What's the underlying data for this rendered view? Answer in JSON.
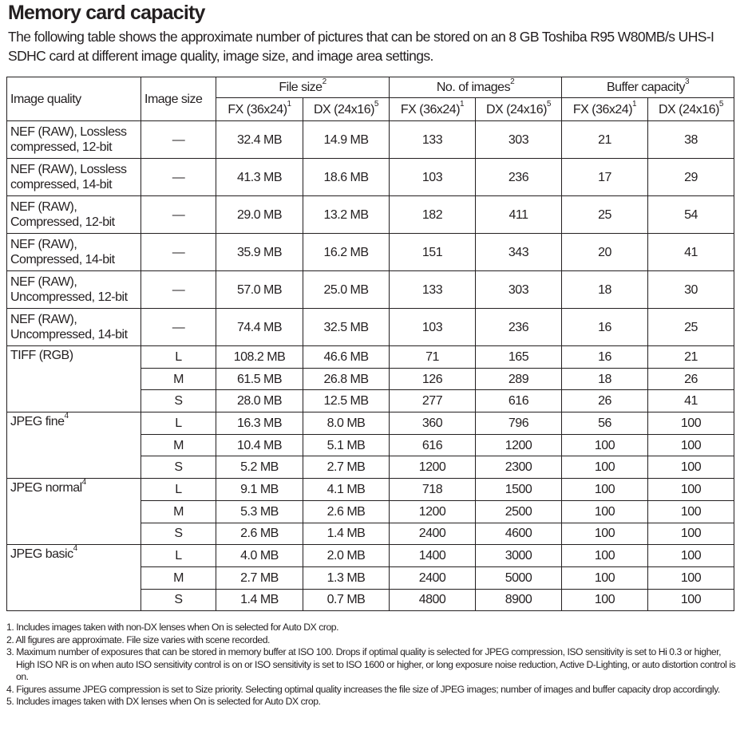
{
  "title": "Memory card capacity",
  "intro": "The following table shows the approximate number of pictures that can be stored on an 8 GB Toshiba R95 W80MB/s UHS-I SDHC card at different image quality, image size, and image area settings.",
  "table": {
    "headers": {
      "image_quality": "Image quality",
      "image_size": "Image size",
      "file_size": "File size",
      "file_size_sup": "2",
      "no_images": "No. of images",
      "no_images_sup": "2",
      "buffer": "Buffer capacity",
      "buffer_sup": "3",
      "fx": "FX (36x24)",
      "fx_sup": "1",
      "dx": "DX (24x16)",
      "dx_sup": "5"
    },
    "groups": [
      {
        "quality": "NEF (RAW), Lossless compressed, 12-bit",
        "sup": "",
        "rows": [
          [
            "—",
            "32.4 MB",
            "14.9 MB",
            "133",
            "303",
            "21",
            "38"
          ]
        ]
      },
      {
        "quality": "NEF (RAW), Lossless compressed, 14-bit",
        "sup": "",
        "rows": [
          [
            "—",
            "41.3 MB",
            "18.6 MB",
            "103",
            "236",
            "17",
            "29"
          ]
        ]
      },
      {
        "quality": "NEF (RAW), Compressed, 12-bit",
        "sup": "",
        "rows": [
          [
            "—",
            "29.0 MB",
            "13.2 MB",
            "182",
            "411",
            "25",
            "54"
          ]
        ]
      },
      {
        "quality": "NEF (RAW), Compressed, 14-bit",
        "sup": "",
        "rows": [
          [
            "—",
            "35.9 MB",
            "16.2 MB",
            "151",
            "343",
            "20",
            "41"
          ]
        ]
      },
      {
        "quality": "NEF (RAW), Uncompressed, 12-bit",
        "sup": "",
        "rows": [
          [
            "—",
            "57.0 MB",
            "25.0 MB",
            "133",
            "303",
            "18",
            "30"
          ]
        ]
      },
      {
        "quality": "NEF (RAW), Uncompressed, 14-bit",
        "sup": "",
        "rows": [
          [
            "—",
            "74.4 MB",
            "32.5 MB",
            "103",
            "236",
            "16",
            "25"
          ]
        ]
      },
      {
        "quality": "TIFF (RGB)",
        "sup": "",
        "rows": [
          [
            "L",
            "108.2 MB",
            "46.6 MB",
            "71",
            "165",
            "16",
            "21"
          ],
          [
            "M",
            "61.5 MB",
            "26.8 MB",
            "126",
            "289",
            "18",
            "26"
          ],
          [
            "S",
            "28.0 MB",
            "12.5 MB",
            "277",
            "616",
            "26",
            "41"
          ]
        ]
      },
      {
        "quality": "JPEG fine",
        "sup": "4",
        "rows": [
          [
            "L",
            "16.3 MB",
            "8.0 MB",
            "360",
            "796",
            "56",
            "100"
          ],
          [
            "M",
            "10.4 MB",
            "5.1 MB",
            "616",
            "1200",
            "100",
            "100"
          ],
          [
            "S",
            "5.2 MB",
            "2.7 MB",
            "1200",
            "2300",
            "100",
            "100"
          ]
        ]
      },
      {
        "quality": "JPEG normal",
        "sup": "4",
        "rows": [
          [
            "L",
            "9.1 MB",
            "4.1 MB",
            "718",
            "1500",
            "100",
            "100"
          ],
          [
            "M",
            "5.3 MB",
            "2.6 MB",
            "1200",
            "2500",
            "100",
            "100"
          ],
          [
            "S",
            "2.6 MB",
            "1.4 MB",
            "2400",
            "4600",
            "100",
            "100"
          ]
        ]
      },
      {
        "quality": "JPEG basic",
        "sup": "4",
        "rows": [
          [
            "L",
            "4.0 MB",
            "2.0 MB",
            "1400",
            "3000",
            "100",
            "100"
          ],
          [
            "M",
            "2.7 MB",
            "1.3 MB",
            "2400",
            "5000",
            "100",
            "100"
          ],
          [
            "S",
            "1.4 MB",
            "0.7 MB",
            "4800",
            "8900",
            "100",
            "100"
          ]
        ]
      }
    ]
  },
  "footnotes": [
    "1. Includes images taken with non-DX lenses when On is selected for Auto DX crop.",
    "2. All figures are approximate. File size varies with scene recorded.",
    "3. Maximum number of exposures that can be stored in memory buffer at ISO 100. Drops if optimal quality is selected for JPEG compression, ISO sensitivity is set to Hi 0.3 or higher, High ISO NR is on when auto ISO sensitivity control is on or ISO sensitivity is set to ISO 1600 or higher, or long exposure noise reduction, Active D-Lighting, or auto distortion control is on.",
    "4. Figures assume JPEG compression is set to Size priority. Selecting optimal quality increases the file size of JPEG images; number of images and buffer capacity drop accordingly.",
    "5. Includes images taken with DX lenses when On is selected for Auto DX crop."
  ]
}
